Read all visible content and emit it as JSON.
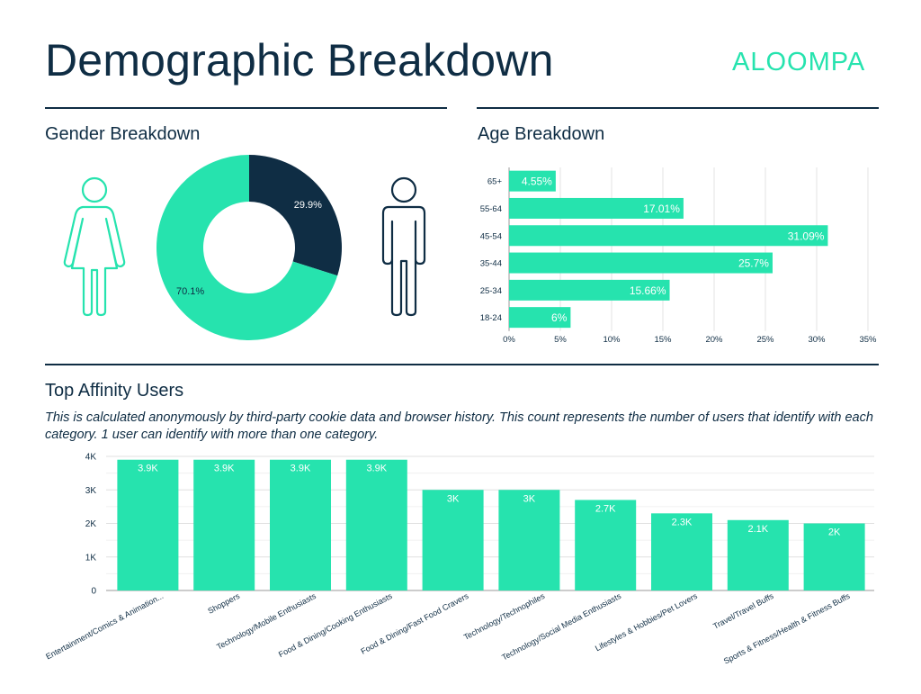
{
  "page": {
    "title": "Demographic Breakdown",
    "brand": "ALOOMPA",
    "colors": {
      "accent": "#26e3ae",
      "dark": "#0f2d44",
      "text": "#0f2d44"
    }
  },
  "gender": {
    "title": "Gender Breakdown",
    "icons": [
      "female-figure-icon",
      "male-figure-icon"
    ]
  },
  "age": {
    "title": "Age Breakdown"
  },
  "affinity": {
    "title": "Top Affinity Users",
    "note": "This is calculated anonymously by third-party cookie data and browser history. This count represents the number of users that identify with each category. 1 user can identify with more than one category."
  },
  "chart_data": [
    {
      "type": "pie",
      "labels": [
        "",
        ""
      ],
      "values": [
        29.9,
        70.1
      ],
      "value_labels": [
        "29.9%",
        "70.1%"
      ],
      "colors": [
        "#0f2d44",
        "#26e3ae"
      ],
      "donut": true
    },
    {
      "type": "bar",
      "orientation": "horizontal",
      "categories": [
        "65+",
        "55-64",
        "45-54",
        "35-44",
        "25-34",
        "18-24"
      ],
      "values": [
        4.55,
        17.01,
        31.09,
        25.7,
        15.66,
        6
      ],
      "value_labels": [
        "4.55%",
        "17.01%",
        "31.09%",
        "25.7%",
        "15.66%",
        "6%"
      ],
      "xticks": [
        "0%",
        "5%",
        "10%",
        "15%",
        "20%",
        "25%",
        "30%",
        "35%"
      ],
      "xlim": [
        0,
        35
      ],
      "grid": true,
      "color": "#26e3ae"
    },
    {
      "type": "bar",
      "orientation": "vertical",
      "categories": [
        "Entertainment/Comics & Animation...",
        "Shoppers",
        "Technology/Mobile Enthusiasts",
        "Food & Dining/Cooking Enthusiasts",
        "Food & Dining/Fast Food Cravers",
        "Technology/Technophiles",
        "Technology/Social Media Enthusiasts",
        "Lifestyles & Hobbies/Pet Lovers",
        "Travel/Travel Buffs",
        "Sports & Fitness/Health & Fitness Buffs"
      ],
      "values": [
        3900,
        3900,
        3900,
        3900,
        3000,
        3000,
        2700,
        2300,
        2100,
        2000
      ],
      "value_labels": [
        "3.9K",
        "3.9K",
        "3.9K",
        "3.9K",
        "3K",
        "3K",
        "2.7K",
        "2.3K",
        "2.1K",
        "2K"
      ],
      "yticks": [
        "0",
        "1K",
        "2K",
        "3K",
        "4K"
      ],
      "ylim": [
        0,
        4000
      ],
      "grid": true,
      "color": "#26e3ae"
    }
  ]
}
